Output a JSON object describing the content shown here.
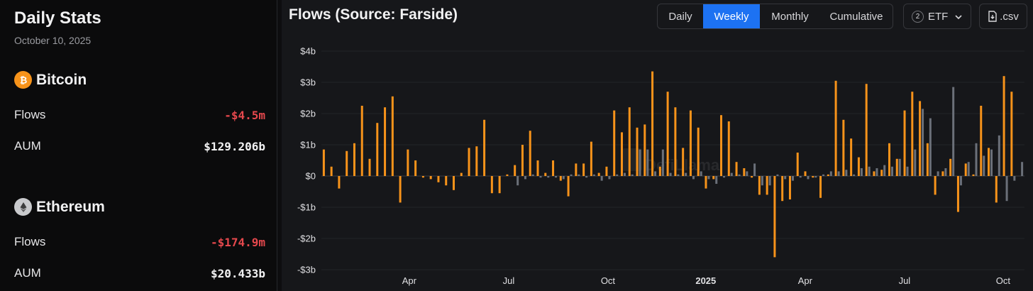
{
  "sidebar": {
    "title": "Daily Stats",
    "date": "October 10, 2025",
    "assets": [
      {
        "name": "Bitcoin",
        "icon": "bitcoin-icon",
        "color": "#f7931a",
        "flows_label": "Flows",
        "flows_value": "-$4.5m",
        "aum_label": "AUM",
        "aum_value": "$129.206b"
      },
      {
        "name": "Ethereum",
        "icon": "ethereum-icon",
        "color": "#c9cacd",
        "flows_label": "Flows",
        "flows_value": "-$174.9m",
        "aum_label": "AUM",
        "aum_value": "$20.433b"
      }
    ]
  },
  "chart_panel": {
    "title": "Flows (Source: Farside)",
    "tabs": [
      {
        "label": "Daily",
        "active": false
      },
      {
        "label": "Weekly",
        "active": true
      },
      {
        "label": "Monthly",
        "active": false
      },
      {
        "label": "Cumulative",
        "active": false
      }
    ],
    "etf_filter": {
      "count": "2",
      "label": "ETF"
    },
    "csv_label": ".csv",
    "watermark": "DefiLlama"
  },
  "colors": {
    "bitcoin": "#f7931a",
    "ethereum": "#6b7079",
    "accent": "#1d72f2",
    "negative": "#e5484d"
  },
  "chart_data": {
    "type": "bar",
    "ylim": [
      -3,
      4
    ],
    "y_ticks": [
      4,
      3,
      2,
      1,
      0,
      -1,
      -2,
      -3
    ],
    "y_tick_labels": [
      "$4b",
      "$3b",
      "$2b",
      "$1b",
      "$0",
      "-$1b",
      "-$2b",
      "-$3b"
    ],
    "x_tick_labels": [
      {
        "label": "Apr",
        "week": 11.5,
        "bold": false
      },
      {
        "label": "Jul",
        "week": 24.5,
        "bold": false
      },
      {
        "label": "Oct",
        "week": 37.5,
        "bold": false
      },
      {
        "label": "2025",
        "week": 50.3,
        "bold": true
      },
      {
        "label": "Apr",
        "week": 63.3,
        "bold": false
      },
      {
        "label": "Jul",
        "week": 76.3,
        "bold": false
      },
      {
        "label": "Oct",
        "week": 89.2,
        "bold": false
      }
    ],
    "week_count": 92,
    "series": [
      {
        "key": "bitcoin",
        "values": [
          0.85,
          0.3,
          -0.4,
          0.8,
          1.05,
          2.25,
          0.55,
          1.7,
          2.2,
          2.55,
          -0.85,
          0.85,
          0.5,
          -0.05,
          -0.1,
          -0.2,
          -0.3,
          -0.45,
          0.1,
          0.9,
          0.95,
          1.8,
          -0.55,
          -0.55,
          0.05,
          0.35,
          1.0,
          1.45,
          0.5,
          0.1,
          0.5,
          -0.15,
          -0.65,
          0.4,
          0.4,
          1.1,
          0.1,
          0.3,
          2.1,
          1.4,
          2.2,
          1.55,
          1.65,
          3.35,
          0.3,
          2.7,
          2.2,
          0.9,
          2.1,
          1.55,
          -0.4,
          -0.1,
          1.95,
          1.75,
          0.45,
          0.25,
          -0.05,
          -0.6,
          -0.6,
          -2.6,
          -0.8,
          -0.75,
          0.75,
          0.15,
          -0.05,
          -0.7,
          0.05,
          3.05,
          1.8,
          1.2,
          0.6,
          2.95,
          0.15,
          0.2,
          1.05,
          0.55,
          2.1,
          2.7,
          2.4,
          1.05,
          -0.6,
          0.15,
          0.55,
          -1.15,
          0.4,
          0.05,
          2.25,
          0.9,
          -0.85,
          3.2,
          2.7,
          0.0
        ]
      },
      {
        "key": "ethereum",
        "values": [
          0.0,
          0.0,
          0.0,
          0.0,
          0.0,
          0.0,
          0.0,
          0.0,
          0.0,
          0.0,
          0.0,
          0.0,
          0.0,
          0.0,
          0.0,
          0.0,
          0.0,
          0.0,
          0.0,
          0.0,
          0.0,
          0.0,
          0.0,
          0.0,
          0.0,
          -0.3,
          -0.1,
          0.05,
          -0.05,
          -0.05,
          -0.05,
          -0.1,
          0.05,
          0.05,
          -0.05,
          0.05,
          -0.15,
          -0.1,
          0.05,
          0.1,
          0.05,
          0.85,
          0.85,
          0.15,
          0.85,
          0.1,
          0.05,
          0.1,
          -0.1,
          0.15,
          -0.1,
          -0.25,
          -0.05,
          0.1,
          0.05,
          0.15,
          0.4,
          -0.3,
          -0.3,
          0.05,
          -0.1,
          -0.15,
          -0.05,
          -0.1,
          -0.05,
          0.05,
          0.15,
          0.15,
          0.2,
          0.05,
          0.25,
          0.3,
          0.25,
          0.35,
          0.3,
          0.55,
          0.3,
          0.85,
          2.15,
          1.85,
          0.15,
          0.25,
          2.85,
          -0.3,
          0.45,
          1.05,
          0.65,
          0.85,
          1.3,
          -0.8,
          -0.15,
          0.45
        ]
      }
    ]
  }
}
